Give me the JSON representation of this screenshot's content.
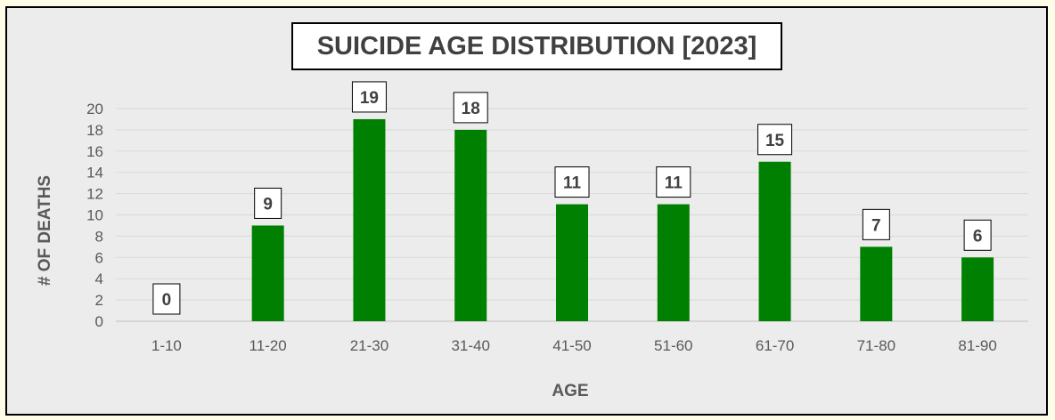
{
  "chart_data": {
    "type": "bar",
    "title": "SUICIDE AGE DISTRIBUTION [2023]",
    "xlabel": "AGE",
    "ylabel": "# OF DEATHS",
    "categories": [
      "1-10",
      "11-20",
      "21-30",
      "31-40",
      "41-50",
      "51-60",
      "61-70",
      "71-80",
      "81-90"
    ],
    "values": [
      0,
      9,
      19,
      18,
      11,
      11,
      15,
      7,
      6
    ],
    "ylim": [
      0,
      20
    ],
    "yticks": [
      0,
      2,
      4,
      6,
      8,
      10,
      12,
      14,
      16,
      18,
      20
    ],
    "grid": true,
    "legend": "none",
    "bar_color": "#008000",
    "data_labels": true
  }
}
